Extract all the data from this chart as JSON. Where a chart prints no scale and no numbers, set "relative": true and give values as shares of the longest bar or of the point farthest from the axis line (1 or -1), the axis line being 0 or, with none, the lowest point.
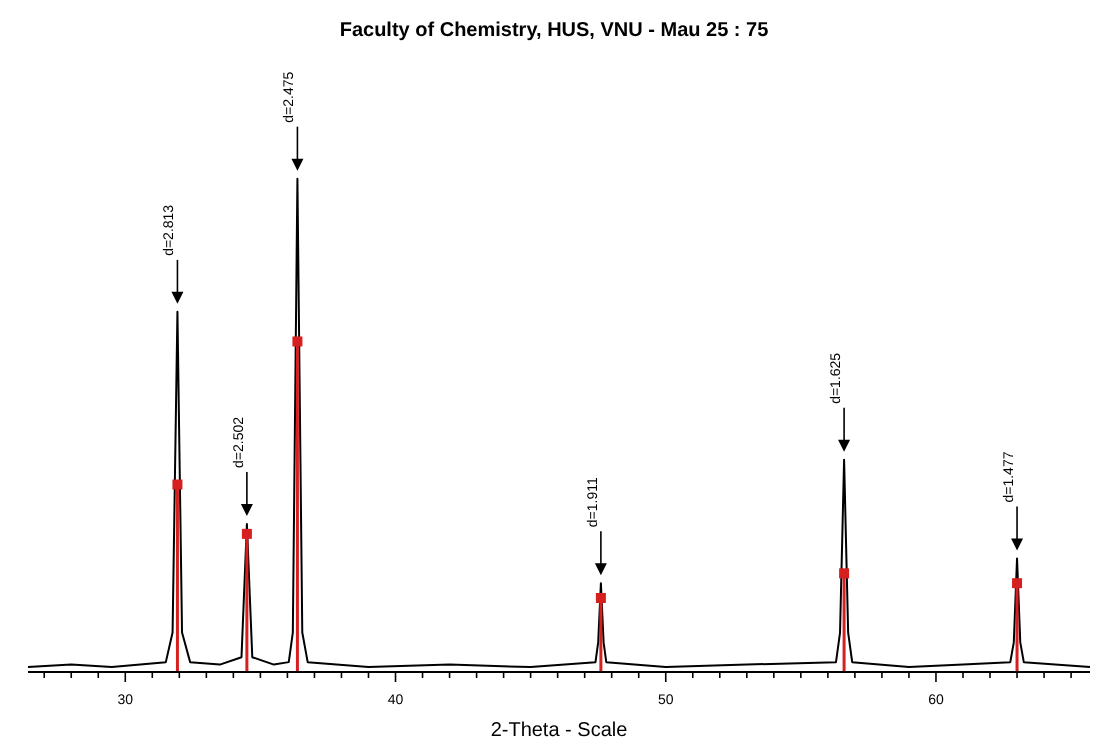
{
  "chart_data": {
    "type": "line",
    "title": "Faculty of Chemistry, HUS, VNU - Mau 25 : 75",
    "xlabel": "2-Theta - Scale",
    "relative": true,
    "xlim": [
      26.4,
      65.7
    ],
    "xticks": [
      {
        "value": 27,
        "label": null
      },
      {
        "value": 28,
        "label": null
      },
      {
        "value": 29,
        "label": null
      },
      30,
      {
        "value": 31,
        "label": null
      },
      {
        "value": 32,
        "label": null
      },
      {
        "value": 33,
        "label": null
      },
      {
        "value": 34,
        "label": null
      },
      {
        "value": 35,
        "label": null
      },
      {
        "value": 36,
        "label": null
      },
      {
        "value": 37,
        "label": null
      },
      {
        "value": 38,
        "label": null
      },
      {
        "value": 39,
        "label": null
      },
      40,
      {
        "value": 41,
        "label": null
      },
      {
        "value": 42,
        "label": null
      },
      {
        "value": 43,
        "label": null
      },
      {
        "value": 44,
        "label": null
      },
      {
        "value": 45,
        "label": null
      },
      {
        "value": 46,
        "label": null
      },
      {
        "value": 47,
        "label": null
      },
      {
        "value": 48,
        "label": null
      },
      {
        "value": 49,
        "label": null
      },
      50,
      {
        "value": 51,
        "label": null
      },
      {
        "value": 52,
        "label": null
      },
      {
        "value": 53,
        "label": null
      },
      {
        "value": 54,
        "label": null
      },
      {
        "value": 55,
        "label": null
      },
      {
        "value": 56,
        "label": null
      },
      {
        "value": 57,
        "label": null
      },
      {
        "value": 58,
        "label": null
      },
      {
        "value": 59,
        "label": null
      },
      60,
      {
        "value": 61,
        "label": null
      },
      {
        "value": 62,
        "label": null
      },
      {
        "value": 63,
        "label": null
      },
      {
        "value": 64,
        "label": null
      },
      {
        "value": 65,
        "label": null
      }
    ],
    "grid": false,
    "line_style": "solid",
    "series": [
      {
        "color": "#000000",
        "marker": "none",
        "x": [
          26.4,
          28,
          29.5,
          31.5,
          31.75,
          31.93,
          32.1,
          32.4,
          33.5,
          34.3,
          34.5,
          34.7,
          35.5,
          36.05,
          36.2,
          36.37,
          36.55,
          36.75,
          39,
          42,
          45,
          47.4,
          47.5,
          47.6,
          47.7,
          47.8,
          50,
          53,
          56.3,
          56.45,
          56.6,
          56.75,
          56.9,
          59,
          61,
          62.75,
          62.88,
          63.0,
          63.12,
          63.25,
          65.7
        ],
        "values": [
          0.01,
          0.015,
          0.01,
          0.02,
          0.08,
          0.73,
          0.08,
          0.02,
          0.015,
          0.03,
          0.3,
          0.03,
          0.015,
          0.02,
          0.08,
          1.0,
          0.08,
          0.02,
          0.01,
          0.015,
          0.01,
          0.02,
          0.06,
          0.18,
          0.06,
          0.02,
          0.01,
          0.015,
          0.02,
          0.08,
          0.43,
          0.08,
          0.02,
          0.01,
          0.015,
          0.02,
          0.06,
          0.23,
          0.06,
          0.02,
          0.01
        ]
      },
      {
        "type": "lollipop",
        "color": "#d62020",
        "marker": "square",
        "x": [
          31.93,
          34.5,
          36.37,
          47.6,
          56.6,
          63.0
        ],
        "values": [
          0.38,
          0.28,
          0.67,
          0.15,
          0.2,
          0.18
        ]
      }
    ],
    "annotations": [
      {
        "text": "d=2.813",
        "x": 31.93,
        "y": 0.73
      },
      {
        "text": "d=2.502",
        "x": 34.5,
        "y": 0.3
      },
      {
        "text": "d=2.475",
        "x": 36.37,
        "y": 1.0
      },
      {
        "text": "d=1.911",
        "x": 47.6,
        "y": 0.18
      },
      {
        "text": "d=1.625",
        "x": 56.6,
        "y": 0.43
      },
      {
        "text": "d=1.477",
        "x": 63.0,
        "y": 0.23
      }
    ]
  }
}
